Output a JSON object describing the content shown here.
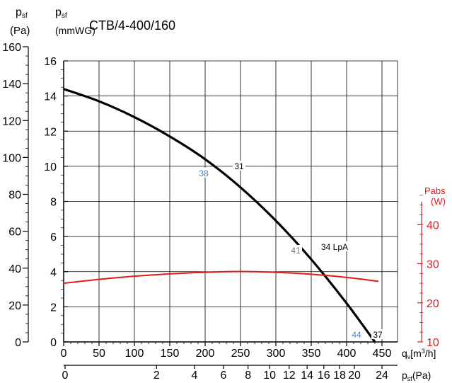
{
  "chart_data": {
    "type": "line",
    "title": "CTB/4-400/160",
    "y_left_pa_label": {
      "main": "p",
      "sub": "sf",
      "unit": "(Pa)"
    },
    "y_left_mmwg_label": {
      "main": "p",
      "sub": "sf",
      "unit": "(mmWG)"
    },
    "y_right_label": {
      "line1": "Pabs",
      "line2": "(W)"
    },
    "x_label": {
      "main": "q",
      "sub": "v",
      "unit": "[m",
      "sup": "3",
      "tail": "/h]"
    },
    "x2_label": {
      "main": "p",
      "sub": "sf",
      "unit": "(Pa)"
    },
    "x_range": [
      0,
      450
    ],
    "y_pa_range": [
      0,
      160
    ],
    "y_mmwg_range": [
      0,
      16
    ],
    "y_right_range": [
      10,
      50
    ],
    "grid": true,
    "x_ticks": [
      "0",
      "50",
      "100",
      "150",
      "200",
      "250",
      "300",
      "350",
      "400",
      "450"
    ],
    "x_tick_values": [
      0,
      50,
      100,
      150,
      200,
      250,
      300,
      350,
      400,
      450
    ],
    "y_pa_ticks": [
      "0",
      "20",
      "40",
      "60",
      "80",
      "100",
      "120",
      "140",
      "160"
    ],
    "y_pa_tick_values": [
      0,
      20,
      40,
      60,
      80,
      100,
      120,
      140,
      160
    ],
    "y_mmwg_ticks": [
      "0",
      "2",
      "4",
      "6",
      "8",
      "10",
      "12",
      "14",
      "16"
    ],
    "y_mmwg_tick_values": [
      0,
      2,
      4,
      6,
      8,
      10,
      12,
      14,
      16
    ],
    "y_right_ticks": [
      "10",
      "20",
      "30",
      "40"
    ],
    "y_right_tick_values": [
      10,
      20,
      30,
      40
    ],
    "x2_ticks": [
      "0",
      "2",
      "4",
      "6",
      "8",
      "10",
      "12",
      "14",
      "16",
      "18",
      "20",
      "24"
    ],
    "x2_tick_values": [
      0,
      2,
      4,
      6,
      8,
      10,
      12,
      14,
      16,
      18,
      20,
      24
    ],
    "series": [
      {
        "axis": "left",
        "color": "#000000",
        "x": [
          0,
          50,
          100,
          150,
          200,
          250,
          300,
          350,
          400,
          440
        ],
        "y": [
          144,
          137,
          128,
          117,
          104,
          88,
          69,
          47,
          22,
          0
        ]
      },
      {
        "axis": "right",
        "color": "#e31a1c",
        "x": [
          0,
          50,
          100,
          150,
          200,
          250,
          300,
          350,
          400,
          445
        ],
        "y": [
          25.0,
          26.0,
          26.8,
          27.4,
          27.8,
          28.0,
          27.8,
          27.3,
          26.5,
          25.5
        ]
      }
    ],
    "annotations": [
      {
        "text": "38",
        "x": 198,
        "y": 96,
        "color": "#4a7fb5"
      },
      {
        "text": "31",
        "x": 248,
        "y": 100,
        "color": "#000000"
      },
      {
        "text": "41",
        "x": 328,
        "y": 52,
        "color": "#4a7fb5"
      },
      {
        "text": "34 LpA",
        "x": 383,
        "y": 54,
        "color": "#000000"
      },
      {
        "text": "44",
        "x": 414,
        "y": 4,
        "color": "#4a7fb5"
      },
      {
        "text": "37",
        "x": 444,
        "y": 4,
        "color": "#000000"
      }
    ]
  }
}
